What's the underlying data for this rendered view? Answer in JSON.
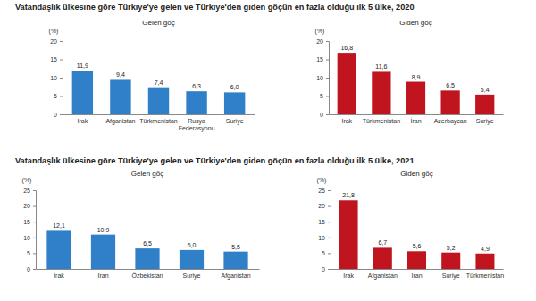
{
  "chart_data": [
    {
      "type": "bar",
      "title": "Vatandaşlık ülkesine göre Türkiye'ye gelen ve Türkiye'den giden göçün en fazla olduğu ilk 5 ülke, 2020",
      "subtitle": "Gelen göç",
      "ylabel": "(%)",
      "categories": [
        "Irak",
        "Afganistan",
        "Türkmenistan",
        "Rusya Federasyonu",
        "Suriye"
      ],
      "values": [
        11.9,
        9.4,
        7.4,
        6.3,
        6.0
      ],
      "value_labels": [
        "11,9",
        "9,4",
        "7,4",
        "6,3",
        "6,0"
      ],
      "color": "#2f80c8",
      "ylim": [
        0,
        20
      ],
      "yticks": [
        0,
        5,
        10,
        15,
        20
      ],
      "grid": false,
      "data_labels": true
    },
    {
      "type": "bar",
      "subtitle": "Giden göç",
      "ylabel": "(%)",
      "categories": [
        "Irak",
        "Türkmenistan",
        "İran",
        "Azerbaycan",
        "Suriye"
      ],
      "values": [
        16.8,
        11.6,
        8.9,
        6.5,
        5.4
      ],
      "value_labels": [
        "16,8",
        "11,6",
        "8,9",
        "6,5",
        "5,4"
      ],
      "color": "#c0141e",
      "ylim": [
        0,
        20
      ],
      "yticks": [
        0,
        5,
        10,
        15,
        20
      ],
      "grid": false,
      "data_labels": true
    },
    {
      "type": "bar",
      "title": "Vatandaşlık ülkesine göre Türkiye'ye gelen ve Türkiye'den giden göçün en fazla olduğu ilk 5 ülke, 2021",
      "subtitle": "Gelen göç",
      "ylabel": "(%)",
      "categories": [
        "Irak",
        "İran",
        "Özbekistan",
        "Suriye",
        "Afganistan"
      ],
      "values": [
        12.1,
        10.9,
        6.5,
        6.0,
        5.5
      ],
      "value_labels": [
        "12,1",
        "10,9",
        "6,5",
        "6,0",
        "5,5"
      ],
      "color": "#2f80c8",
      "ylim": [
        0,
        25
      ],
      "yticks": [
        0,
        5,
        10,
        15,
        20,
        25
      ],
      "grid": false,
      "data_labels": true
    },
    {
      "type": "bar",
      "subtitle": "Giden göç",
      "ylabel": "(%)",
      "categories": [
        "Irak",
        "Afganistan",
        "İran",
        "Suriye",
        "Türkmenistan"
      ],
      "values": [
        21.8,
        6.7,
        5.6,
        5.2,
        4.9
      ],
      "value_labels": [
        "21,8",
        "6,7",
        "5,6",
        "5,2",
        "4,9"
      ],
      "color": "#c0141e",
      "ylim": [
        0,
        25
      ],
      "yticks": [
        0,
        5,
        10,
        15,
        20,
        25
      ],
      "grid": false,
      "data_labels": true
    }
  ]
}
